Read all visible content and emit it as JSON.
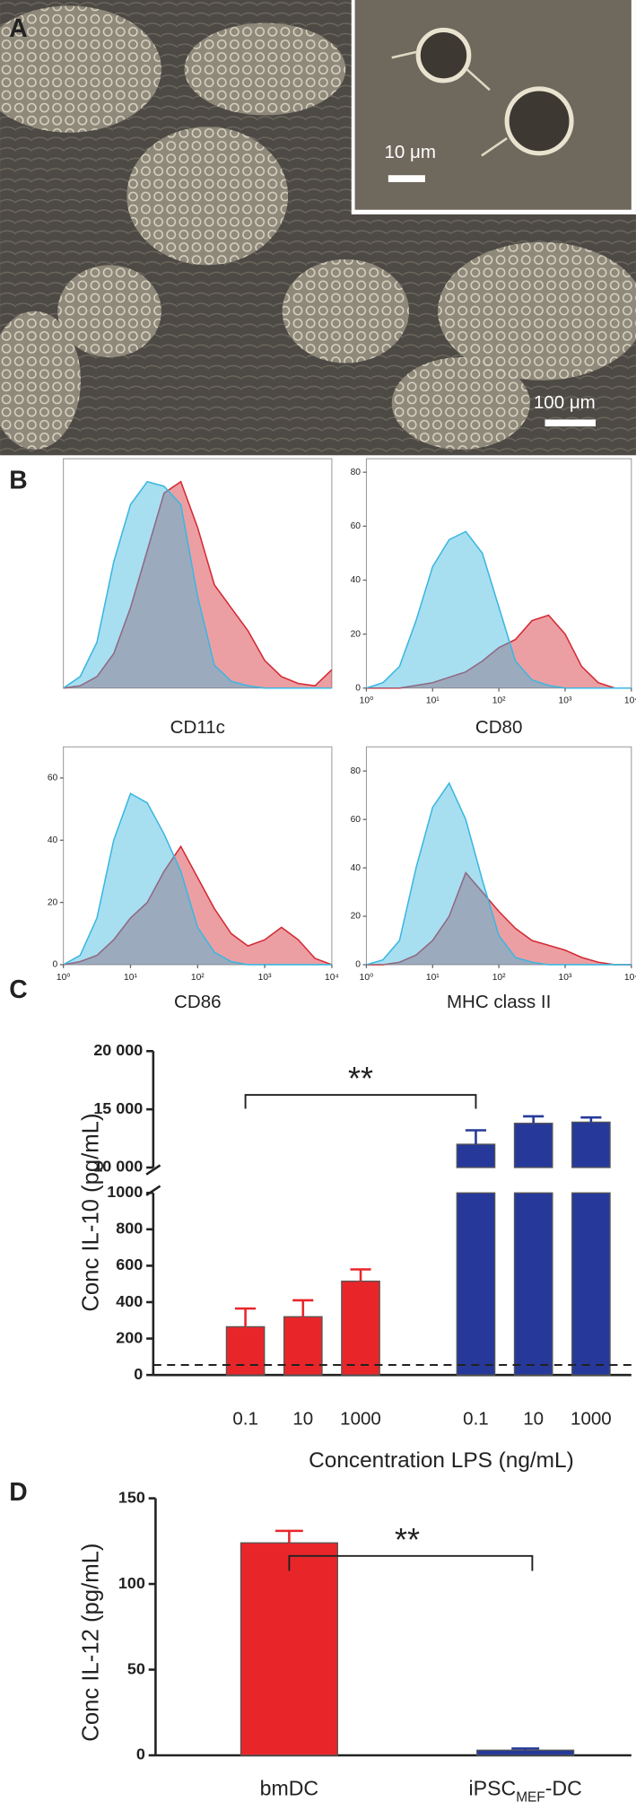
{
  "panels": {
    "a": "A",
    "b": "B",
    "c": "C",
    "d": "D"
  },
  "micrograph": {
    "inset_scale": "10 μm",
    "main_scale": "100 μm"
  },
  "chart_data": [
    {
      "type": "area",
      "xlabel": "CD11c",
      "xscale": "log",
      "xlim": [
        1,
        10000
      ],
      "ylim": [
        0,
        100
      ],
      "x": [
        1,
        1.778,
        3.162,
        5.623,
        10,
        17.78,
        31.62,
        56.23,
        100,
        177.8,
        316.2,
        562.3,
        1000,
        1778,
        3162,
        5623,
        10000
      ],
      "series": [
        {
          "color": "#d42a34",
          "values": [
            0,
            1,
            5,
            15,
            35,
            60,
            85,
            90,
            70,
            45,
            35,
            25,
            12,
            5,
            2,
            1,
            8
          ]
        },
        {
          "color": "#3bb7e0",
          "values": [
            0,
            5,
            20,
            55,
            80,
            90,
            88,
            80,
            40,
            10,
            3,
            1,
            0,
            0,
            0,
            0,
            0
          ]
        }
      ]
    },
    {
      "type": "area",
      "xlabel": "CD80",
      "xscale": "log",
      "xlim": [
        1,
        10000
      ],
      "ylim": [
        0,
        85
      ],
      "xticks": [
        {
          "value": 1,
          "label": "10⁰"
        },
        {
          "value": 10,
          "label": "10¹"
        },
        {
          "value": 100,
          "label": "10²"
        },
        {
          "value": 1000,
          "label": "10³"
        },
        {
          "value": 10000,
          "label": "10⁴"
        }
      ],
      "yticks": [
        0,
        20,
        40,
        60,
        80
      ],
      "x": [
        1,
        1.778,
        3.162,
        5.623,
        10,
        17.78,
        31.62,
        56.23,
        100,
        177.8,
        316.2,
        562.3,
        1000,
        1778,
        3162,
        5623,
        10000
      ],
      "series": [
        {
          "color": "#d42a34",
          "values": [
            0,
            0,
            0,
            1,
            2,
            4,
            6,
            10,
            15,
            18,
            25,
            27,
            20,
            8,
            2,
            0,
            0
          ]
        },
        {
          "color": "#3bb7e0",
          "values": [
            0,
            2,
            8,
            25,
            45,
            55,
            58,
            50,
            30,
            10,
            3,
            1,
            0,
            0,
            0,
            0,
            0
          ]
        }
      ]
    },
    {
      "type": "area",
      "xlabel": "CD86",
      "xscale": "log",
      "xlim": [
        1,
        10000
      ],
      "ylim": [
        0,
        70
      ],
      "xticks": [
        {
          "value": 1,
          "label": "10⁰"
        },
        {
          "value": 10,
          "label": "10¹"
        },
        {
          "value": 100,
          "label": "10²"
        },
        {
          "value": 1000,
          "label": "10³"
        },
        {
          "value": 10000,
          "label": "10⁴"
        }
      ],
      "yticks": [
        0,
        20,
        40,
        60
      ],
      "x": [
        1,
        1.778,
        3.162,
        5.623,
        10,
        17.78,
        31.62,
        56.23,
        100,
        177.8,
        316.2,
        562.3,
        1000,
        1778,
        3162,
        5623,
        10000
      ],
      "series": [
        {
          "color": "#d42a34",
          "values": [
            0,
            1,
            3,
            8,
            15,
            20,
            30,
            38,
            28,
            18,
            10,
            6,
            8,
            12,
            8,
            2,
            0
          ]
        },
        {
          "color": "#3bb7e0",
          "values": [
            0,
            3,
            15,
            40,
            55,
            52,
            42,
            30,
            12,
            4,
            1,
            0,
            0,
            0,
            0,
            0,
            0
          ]
        }
      ]
    },
    {
      "type": "area",
      "xlabel": "MHC class II",
      "xscale": "log",
      "xlim": [
        1,
        10000
      ],
      "ylim": [
        0,
        90
      ],
      "xticks": [
        {
          "value": 1,
          "label": "10⁰"
        },
        {
          "value": 10,
          "label": "10¹"
        },
        {
          "value": 100,
          "label": "10²"
        },
        {
          "value": 1000,
          "label": "10³"
        },
        {
          "value": 10000,
          "label": "10⁴"
        }
      ],
      "yticks": [
        0,
        20,
        40,
        60,
        80
      ],
      "x": [
        1,
        1.778,
        3.162,
        5.623,
        10,
        17.78,
        31.62,
        56.23,
        100,
        177.8,
        316.2,
        562.3,
        1000,
        1778,
        3162,
        5623,
        10000
      ],
      "series": [
        {
          "color": "#d42a34",
          "values": [
            0,
            0,
            1,
            4,
            10,
            20,
            38,
            30,
            22,
            15,
            10,
            8,
            6,
            3,
            1,
            0,
            0
          ]
        },
        {
          "color": "#3bb7e0",
          "values": [
            0,
            2,
            10,
            40,
            65,
            75,
            60,
            35,
            12,
            3,
            1,
            0,
            0,
            0,
            0,
            0,
            0
          ]
        }
      ]
    },
    {
      "type": "broken_bar",
      "ylabel": "Conc IL-10 (pg/mL)",
      "xlabel": "Concentration LPS (ng/mL)",
      "categories": [
        "0.1",
        "10",
        "1000",
        "0.1",
        "10",
        "1000"
      ],
      "values": [
        265,
        320,
        515,
        12000,
        13800,
        13900
      ],
      "errors": [
        100,
        90,
        65,
        1200,
        600,
        400
      ],
      "colors": [
        "#e8262a",
        "#e8262a",
        "#e8262a",
        "#26399a",
        "#26399a",
        "#26399a"
      ],
      "ylim_lower": [
        0,
        1000
      ],
      "yticks_lower": [
        0,
        200,
        400,
        600,
        800,
        1000
      ],
      "ylim_upper": [
        10000,
        20000
      ],
      "yticks_upper": [
        {
          "value": 10000,
          "label": "10 000"
        },
        {
          "value": 15000,
          "label": "15 000"
        },
        {
          "value": 20000,
          "label": "20 000"
        }
      ],
      "reference_line": 55,
      "annotation": "**"
    },
    {
      "type": "bar",
      "ylabel": "Conc IL-12 (pg/mL)",
      "categories": [
        [
          "bmDC"
        ],
        [
          "iPSC",
          "MEF",
          "-DC"
        ]
      ],
      "values": [
        124,
        3
      ],
      "errors": [
        7,
        1
      ],
      "colors": [
        "#e8262a",
        "#26399a"
      ],
      "ylim": [
        0,
        150
      ],
      "yticks": [
        0,
        50,
        100,
        150
      ],
      "annotation": "**"
    }
  ]
}
